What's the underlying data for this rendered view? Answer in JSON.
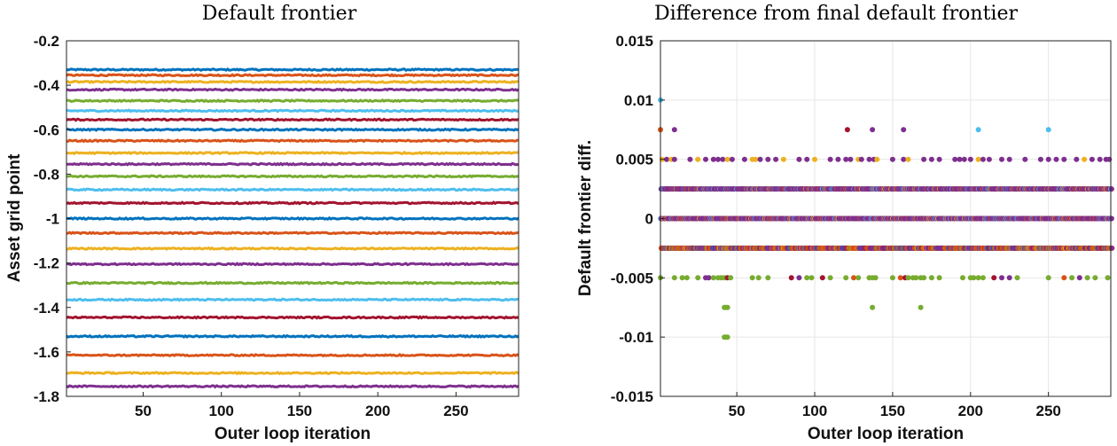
{
  "colors": [
    "#0072BD",
    "#D95319",
    "#EDB120",
    "#7E2F8E",
    "#77AC30",
    "#4DBEEE",
    "#A2142F"
  ],
  "chart_data": [
    {
      "type": "line",
      "title": "Default frontier",
      "xlabel": "Outer loop iteration",
      "ylabel": "Asset grid point",
      "xlim": [
        1,
        290
      ],
      "ylim": [
        -1.8,
        -0.2
      ],
      "xticks": [
        50,
        100,
        150,
        200,
        250
      ],
      "xtick_labels": [
        "50",
        "100",
        "150",
        "200",
        "250"
      ],
      "yticks": [
        -0.2,
        -0.4,
        -0.6,
        -0.8,
        -1,
        -1.2,
        -1.4,
        -1.6,
        -1.8
      ],
      "ytick_labels": [
        "-0.2",
        "-0.4",
        "-0.6",
        "-0.8",
        "-1",
        "-1.2",
        "-1.4",
        "-1.6",
        "-1.8"
      ],
      "grid": false,
      "series_levels": [
        -0.33,
        -0.355,
        -0.385,
        -0.42,
        -0.47,
        -0.515,
        -0.555,
        -0.6,
        -0.65,
        -0.705,
        -0.755,
        -0.81,
        -0.87,
        -0.93,
        -1.0,
        -1.065,
        -1.135,
        -1.205,
        -1.29,
        -1.365,
        -1.445,
        -1.53,
        -1.615,
        -1.695,
        -1.755
      ]
    },
    {
      "type": "scatter",
      "title": "Difference from final default frontier",
      "xlabel": "Outer loop iteration",
      "ylabel": "Default frontier diff.",
      "xlim": [
        1,
        290
      ],
      "ylim": [
        -0.015,
        0.015
      ],
      "xticks": [
        50,
        100,
        150,
        200,
        250
      ],
      "xtick_labels": [
        "50",
        "100",
        "150",
        "200",
        "250"
      ],
      "yticks": [
        0.015,
        0.01,
        0.005,
        0,
        -0.005,
        -0.01,
        -0.015
      ],
      "ytick_labels": [
        "0.015",
        "0.01",
        "0.005",
        "0",
        "-0.005",
        "-0.01",
        "-0.015"
      ],
      "grid": true,
      "dense_bands": [
        0.0025,
        0,
        -0.0025
      ],
      "points": [
        {
          "x": 1,
          "y": 0.01,
          "c": 5
        },
        {
          "x": 1,
          "y": 0.0075,
          "c": 2
        },
        {
          "x": 1,
          "y": 0.0075,
          "c": 1
        },
        {
          "x": 10,
          "y": 0.0075,
          "c": 3
        },
        {
          "x": 121,
          "y": 0.0075,
          "c": 6
        },
        {
          "x": 137,
          "y": 0.0075,
          "c": 3
        },
        {
          "x": 157,
          "y": 0.0075,
          "c": 3
        },
        {
          "x": 205,
          "y": 0.0075,
          "c": 5
        },
        {
          "x": 250,
          "y": 0.0075,
          "c": 5
        },
        {
          "x": 42,
          "y": -0.0075,
          "c": 4
        },
        {
          "x": 43,
          "y": -0.0075,
          "c": 4
        },
        {
          "x": 44,
          "y": -0.0075,
          "c": 4
        },
        {
          "x": 137,
          "y": -0.0075,
          "c": 4
        },
        {
          "x": 168,
          "y": -0.0075,
          "c": 4
        },
        {
          "x": 42,
          "y": -0.01,
          "c": 4
        },
        {
          "x": 43,
          "y": -0.01,
          "c": 4
        },
        {
          "x": 44,
          "y": -0.01,
          "c": 4
        }
      ],
      "sparse_levels": [
        {
          "y": 0.005,
          "x": [
            2,
            5,
            8,
            10,
            20,
            25,
            30,
            35,
            38,
            41,
            44,
            47,
            55,
            60,
            62,
            65,
            70,
            75,
            80,
            90,
            95,
            100,
            110,
            115,
            120,
            123,
            128,
            130,
            135,
            138,
            140,
            150,
            157,
            160,
            170,
            175,
            180,
            190,
            193,
            196,
            200,
            205,
            208,
            212,
            220,
            225,
            235,
            245,
            250,
            255,
            260,
            268,
            273,
            278,
            283,
            287,
            289
          ]
        },
        {
          "y": -0.005,
          "x": [
            1,
            10,
            15,
            18,
            25,
            30,
            32,
            35,
            38,
            40,
            42,
            44,
            46,
            60,
            64,
            70,
            85,
            90,
            95,
            98,
            105,
            110,
            120,
            125,
            128,
            135,
            137,
            139,
            150,
            155,
            158,
            160,
            163,
            165,
            168,
            170,
            175,
            180,
            195,
            200,
            202,
            205,
            208,
            215,
            220,
            225,
            230,
            250,
            260,
            265,
            270,
            275,
            280,
            288
          ]
        }
      ]
    }
  ]
}
